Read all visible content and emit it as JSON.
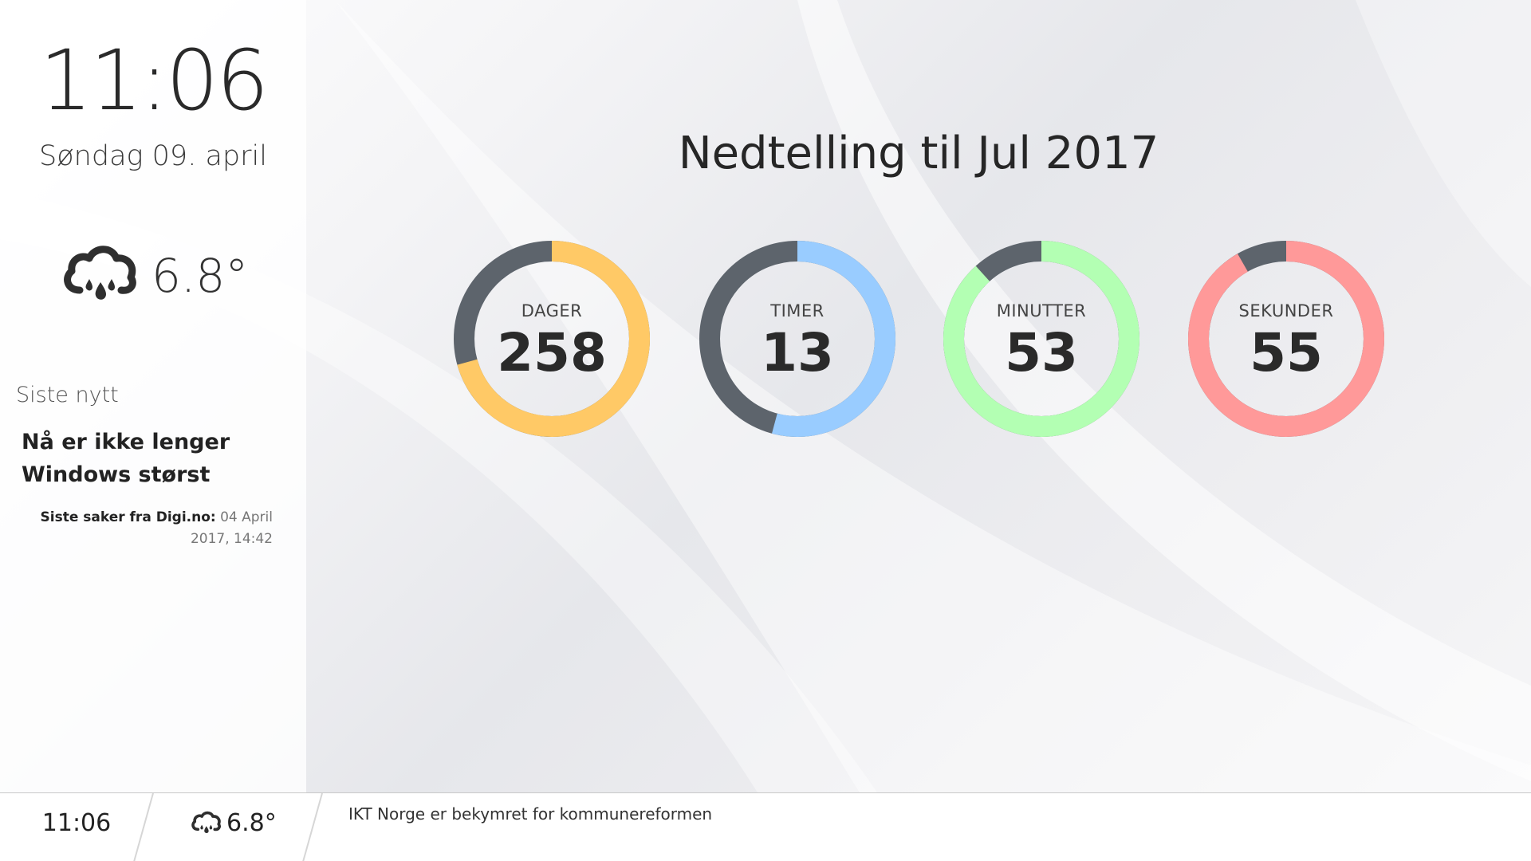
{
  "sidebar": {
    "clock": "11:06",
    "date": "Søndag 09. april",
    "weather": {
      "icon": "cloud-rain-icon",
      "temperature": "6.8°"
    },
    "news": {
      "heading": "Siste nytt",
      "title": "Nå er ikke lenger Windows størst",
      "source_label": "Siste saker fra Digi.no:",
      "timestamp": "04 April 2017, 14:42"
    }
  },
  "countdown": {
    "title": "Nedtelling til Jul 2017",
    "units": [
      {
        "label": "DAGER",
        "value": "258",
        "fraction": 0.707,
        "color": "#ffc966"
      },
      {
        "label": "TIMER",
        "value": "13",
        "fraction": 0.5417,
        "color": "#99ccff"
      },
      {
        "label": "MINUTTER",
        "value": "53",
        "fraction": 0.883,
        "color": "#b3ffb3"
      },
      {
        "label": "SEKUNDER",
        "value": "55",
        "fraction": 0.917,
        "color": "#ff9999"
      }
    ],
    "track_color": "#5d646c"
  },
  "bottombar": {
    "clock": "11:06",
    "weather": {
      "icon": "cloud-rain-icon",
      "temperature": "6.8°"
    },
    "ticker": "IKT Norge er bekymret for kommunereformen"
  }
}
